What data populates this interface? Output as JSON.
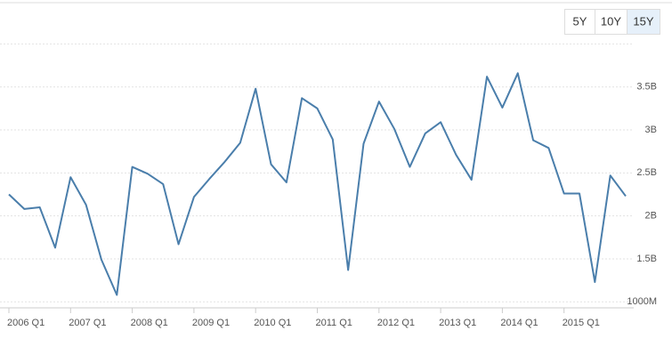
{
  "range_buttons": [
    "5Y",
    "10Y",
    "15Y"
  ],
  "selected_range": "15Y",
  "chart_data": {
    "type": "line",
    "categories": [
      "2006 Q1",
      null,
      null,
      null,
      "2007 Q1",
      null,
      null,
      null,
      "2008 Q1",
      null,
      null,
      null,
      "2009 Q1",
      null,
      null,
      null,
      "2010 Q1",
      null,
      null,
      null,
      "2011 Q1",
      null,
      null,
      null,
      "2012 Q1",
      null,
      null,
      null,
      "2013 Q1",
      null,
      null,
      null,
      "2014 Q1",
      null,
      null,
      null,
      "2015 Q1",
      null,
      null,
      null,
      null
    ],
    "series": [
      {
        "color": "#4a7eab",
        "values": [
          2.25,
          2.08,
          2.1,
          1.63,
          2.45,
          2.13,
          1.49,
          1.08,
          2.57,
          2.49,
          2.37,
          1.67,
          2.22,
          2.43,
          2.63,
          2.85,
          3.48,
          2.6,
          2.39,
          3.37,
          3.25,
          2.89,
          1.37,
          2.84,
          3.33,
          3.01,
          2.57,
          2.96,
          3.09,
          2.71,
          2.42,
          3.62,
          3.26,
          3.66,
          2.88,
          2.79,
          2.26,
          2.26,
          1.23,
          2.47,
          2.23
        ]
      }
    ],
    "ylim": [
      0.93,
      4.46
    ],
    "yticks": [
      {
        "value": 1,
        "label": "1000M"
      },
      {
        "value": 1.5,
        "label": "1.5B"
      },
      {
        "value": 2,
        "label": "2B"
      },
      {
        "value": 2.5,
        "label": "2.5B"
      },
      {
        "value": 3,
        "label": "3B"
      },
      {
        "value": 3.5,
        "label": "3.5B"
      },
      4
    ],
    "grid": true
  }
}
